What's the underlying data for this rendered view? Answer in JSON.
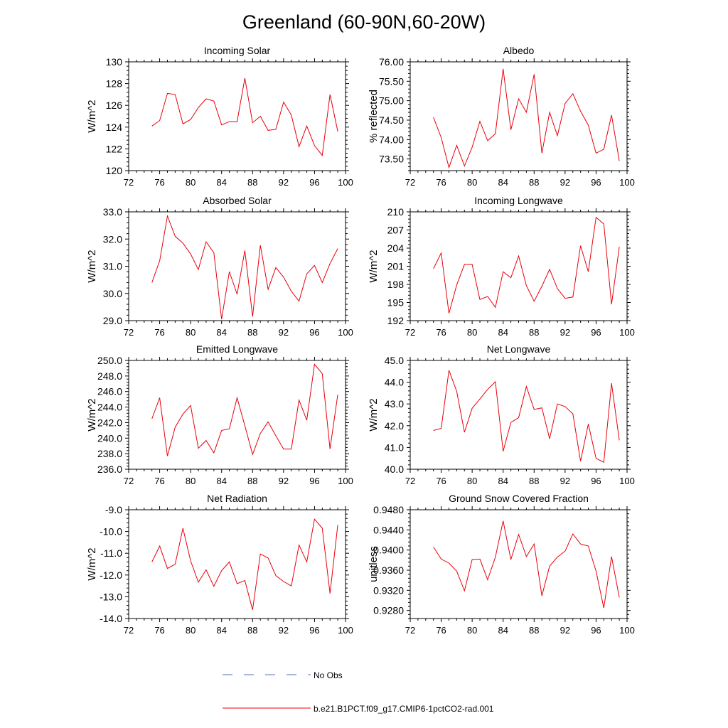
{
  "page": {
    "title": "Greenland (60-90N,60-20W)"
  },
  "legend": [
    {
      "label": "No Obs",
      "color": "#5a6fc0",
      "dashed": true
    },
    {
      "label": "b.e21.B1PCT.f09_g17.CMIP6-1pctCO2-rad.001",
      "color": "#e8000b",
      "dashed": false
    }
  ],
  "chart_data": [
    {
      "type": "line",
      "title": "Incoming Solar",
      "ylabel": "W/m^2",
      "xlim": [
        72,
        100
      ],
      "ylim": [
        120,
        130
      ],
      "xticks": [
        72,
        76,
        80,
        84,
        88,
        92,
        96,
        100
      ],
      "yticks": [
        "120",
        "122",
        "124",
        "126",
        "128",
        "130"
      ],
      "x": [
        75,
        76,
        77,
        78,
        79,
        80,
        81,
        82,
        83,
        84,
        85,
        86,
        87,
        88,
        89,
        90,
        91,
        92,
        93,
        94,
        95,
        96,
        97,
        98,
        99
      ],
      "series": [
        {
          "color": "#e8000b",
          "values": [
            124.1,
            124.6,
            127.1,
            127.0,
            124.3,
            124.7,
            125.8,
            126.6,
            126.4,
            124.2,
            124.5,
            124.5,
            128.5,
            124.4,
            125.0,
            123.7,
            123.8,
            126.3,
            125.1,
            122.2,
            124.1,
            122.3,
            121.4,
            127.0,
            123.6
          ]
        }
      ]
    },
    {
      "type": "line",
      "title": "Albedo",
      "ylabel": "% reflected",
      "xlim": [
        72,
        100
      ],
      "ylim": [
        73.2,
        76.0
      ],
      "xticks": [
        72,
        76,
        80,
        84,
        88,
        92,
        96,
        100
      ],
      "yticks": [
        "73.50",
        "74.00",
        "74.50",
        "75.00",
        "75.50",
        "76.00"
      ],
      "x": [
        75,
        76,
        77,
        78,
        79,
        80,
        81,
        82,
        83,
        84,
        85,
        86,
        87,
        88,
        89,
        90,
        91,
        92,
        93,
        94,
        95,
        96,
        97,
        98,
        99
      ],
      "series": [
        {
          "color": "#e8000b",
          "values": [
            74.57,
            74.05,
            73.28,
            73.85,
            73.32,
            73.8,
            74.47,
            73.97,
            74.15,
            75.82,
            74.25,
            75.05,
            74.7,
            75.68,
            73.65,
            74.7,
            74.1,
            74.93,
            75.18,
            74.73,
            74.37,
            73.65,
            73.75,
            74.63,
            73.45
          ]
        }
      ]
    },
    {
      "type": "line",
      "title": "Absorbed Solar",
      "ylabel": "W/m^2",
      "xlim": [
        72,
        100
      ],
      "ylim": [
        29.0,
        33.0
      ],
      "xticks": [
        72,
        76,
        80,
        84,
        88,
        92,
        96,
        100
      ],
      "yticks": [
        "29.0",
        "30.0",
        "31.0",
        "32.0",
        "33.0"
      ],
      "x": [
        75,
        76,
        77,
        78,
        79,
        80,
        81,
        82,
        83,
        84,
        85,
        86,
        87,
        88,
        89,
        90,
        91,
        92,
        93,
        94,
        95,
        96,
        97,
        98,
        99
      ],
      "series": [
        {
          "color": "#e8000b",
          "values": [
            30.4,
            31.2,
            32.85,
            32.1,
            31.85,
            31.45,
            30.88,
            31.9,
            31.5,
            29.05,
            30.8,
            29.97,
            31.58,
            29.15,
            31.77,
            30.15,
            30.95,
            30.6,
            30.08,
            29.72,
            30.72,
            31.03,
            30.4,
            31.1,
            31.65
          ]
        }
      ]
    },
    {
      "type": "line",
      "title": "Incoming Longwave",
      "ylabel": "W/m^2",
      "xlim": [
        72,
        100
      ],
      "ylim": [
        192,
        210
      ],
      "xticks": [
        72,
        76,
        80,
        84,
        88,
        92,
        96,
        100
      ],
      "yticks": [
        "192",
        "195",
        "198",
        "201",
        "204",
        "207",
        "210"
      ],
      "x": [
        75,
        76,
        77,
        78,
        79,
        80,
        81,
        82,
        83,
        84,
        85,
        86,
        87,
        88,
        89,
        90,
        91,
        92,
        93,
        94,
        95,
        96,
        97,
        98,
        99
      ],
      "series": [
        {
          "color": "#e8000b",
          "values": [
            200.6,
            203.2,
            193.2,
            197.9,
            201.3,
            201.3,
            195.5,
            196.0,
            194.2,
            200.1,
            199.1,
            202.7,
            197.8,
            195.2,
            197.7,
            200.5,
            197.3,
            195.7,
            195.9,
            204.4,
            200.1,
            209.1,
            208.0,
            194.7,
            204.2
          ]
        }
      ]
    },
    {
      "type": "line",
      "title": "Emitted Longwave",
      "ylabel": "W/m^2",
      "xlim": [
        72,
        100
      ],
      "ylim": [
        236.0,
        250.0
      ],
      "xticks": [
        72,
        76,
        80,
        84,
        88,
        92,
        96,
        100
      ],
      "yticks": [
        "236.0",
        "238.0",
        "240.0",
        "242.0",
        "244.0",
        "246.0",
        "248.0",
        "250.0"
      ],
      "x": [
        75,
        76,
        77,
        78,
        79,
        80,
        81,
        82,
        83,
        84,
        85,
        86,
        87,
        88,
        89,
        90,
        91,
        92,
        93,
        94,
        95,
        96,
        97,
        98,
        99
      ],
      "series": [
        {
          "color": "#e8000b",
          "values": [
            242.5,
            245.2,
            237.7,
            241.4,
            243.1,
            244.2,
            238.7,
            239.7,
            238.1,
            241.0,
            241.2,
            245.2,
            241.6,
            237.9,
            240.6,
            242.1,
            240.3,
            238.6,
            238.6,
            244.9,
            242.3,
            249.5,
            248.3,
            238.6,
            245.6
          ]
        }
      ]
    },
    {
      "type": "line",
      "title": "Net Longwave",
      "ylabel": "W/m^2",
      "xlim": [
        72,
        100
      ],
      "ylim": [
        40.0,
        45.0
      ],
      "xticks": [
        72,
        76,
        80,
        84,
        88,
        92,
        96,
        100
      ],
      "yticks": [
        "40.0",
        "41.0",
        "42.0",
        "43.0",
        "44.0",
        "45.0"
      ],
      "x": [
        75,
        76,
        77,
        78,
        79,
        80,
        81,
        82,
        83,
        84,
        85,
        86,
        87,
        88,
        89,
        90,
        91,
        92,
        93,
        94,
        95,
        96,
        97,
        98,
        99
      ],
      "series": [
        {
          "color": "#e8000b",
          "values": [
            41.78,
            41.88,
            44.55,
            43.58,
            41.7,
            42.8,
            43.23,
            43.67,
            44.02,
            40.82,
            42.15,
            42.37,
            43.8,
            42.75,
            42.82,
            41.4,
            43.0,
            42.88,
            42.55,
            40.37,
            42.08,
            40.5,
            40.32,
            43.95,
            41.33
          ]
        }
      ]
    },
    {
      "type": "line",
      "title": "Net Radiation",
      "ylabel": "W/m^2",
      "xlim": [
        72,
        100
      ],
      "ylim": [
        -14.0,
        -9.0
      ],
      "xticks": [
        72,
        76,
        80,
        84,
        88,
        92,
        96,
        100
      ],
      "yticks": [
        "-14.0",
        "-13.0",
        "-12.0",
        "-11.0",
        "-10.0",
        "-9.0"
      ],
      "x": [
        75,
        76,
        77,
        78,
        79,
        80,
        81,
        82,
        83,
        84,
        85,
        86,
        87,
        88,
        89,
        90,
        91,
        92,
        93,
        94,
        95,
        96,
        97,
        98,
        99
      ],
      "series": [
        {
          "color": "#e8000b",
          "values": [
            -11.4,
            -10.67,
            -11.7,
            -11.5,
            -9.85,
            -11.35,
            -12.33,
            -11.76,
            -12.52,
            -11.8,
            -11.4,
            -12.4,
            -12.25,
            -13.6,
            -11.03,
            -11.22,
            -12.03,
            -12.3,
            -12.5,
            -10.62,
            -11.4,
            -9.43,
            -9.85,
            -12.85,
            -9.7
          ]
        }
      ]
    },
    {
      "type": "line",
      "title": "Ground Snow Covered Fraction",
      "ylabel": "unitless",
      "xlim": [
        72,
        100
      ],
      "ylim": [
        0.9264,
        0.948
      ],
      "xticks": [
        72,
        76,
        80,
        84,
        88,
        92,
        96,
        100
      ],
      "yticks": [
        "0.9280",
        "0.9320",
        "0.9360",
        "0.9400",
        "0.9440",
        "0.9480"
      ],
      "x": [
        75,
        76,
        77,
        78,
        79,
        80,
        81,
        82,
        83,
        84,
        85,
        86,
        87,
        88,
        89,
        90,
        91,
        92,
        93,
        94,
        95,
        96,
        97,
        98,
        99
      ],
      "series": [
        {
          "color": "#e8000b",
          "values": [
            0.9406,
            0.9382,
            0.9374,
            0.9358,
            0.9319,
            0.9381,
            0.9382,
            0.9341,
            0.9386,
            0.9458,
            0.9381,
            0.9431,
            0.9387,
            0.9412,
            0.9309,
            0.9368,
            0.9386,
            0.9398,
            0.9432,
            0.9412,
            0.9408,
            0.9358,
            0.9285,
            0.9387,
            0.9306
          ]
        }
      ]
    }
  ]
}
